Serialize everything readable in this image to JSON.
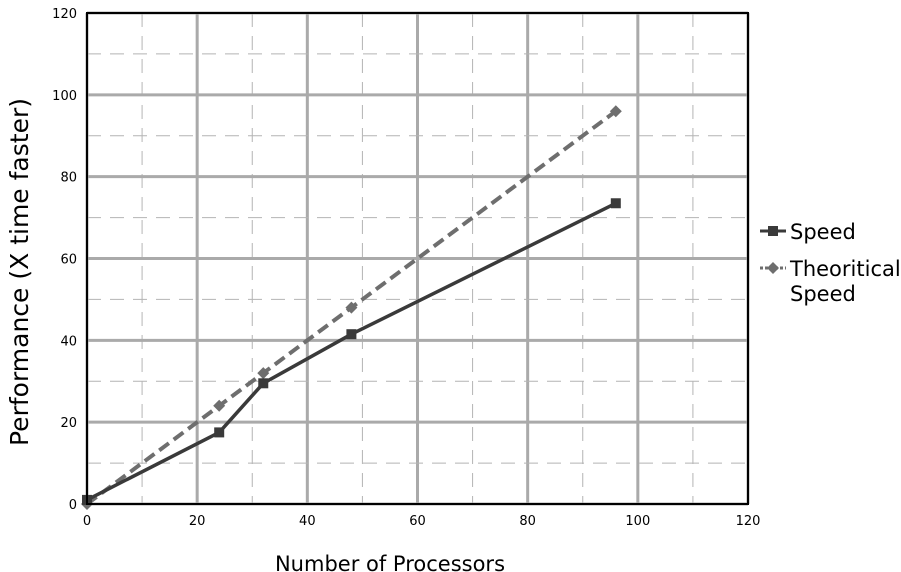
{
  "chart_data": {
    "type": "line",
    "title": "",
    "xlabel": "Number of Processors",
    "ylabel": "Performance (X  time faster)",
    "xlim": [
      0,
      120
    ],
    "ylim": [
      0,
      120
    ],
    "xticks": [
      "0",
      "20",
      "40",
      "60",
      "80",
      "100",
      "120"
    ],
    "yticks": [
      "0",
      "20",
      "40",
      "60",
      "80",
      "100",
      "120"
    ],
    "grid": true,
    "legend_position": "right",
    "series": [
      {
        "name": "Speed",
        "style": "solid",
        "marker": "square",
        "color": "#3a3a3a",
        "points": [
          [
            0,
            1
          ],
          [
            24,
            17.5
          ],
          [
            32,
            29.5
          ],
          [
            48,
            41.5
          ],
          [
            96,
            73.5
          ]
        ]
      },
      {
        "name": "Theoritical Speed",
        "style": "dashed",
        "marker": "diamond",
        "color": "#6e6e6e",
        "points": [
          [
            0,
            0
          ],
          [
            24,
            24
          ],
          [
            32,
            32
          ],
          [
            48,
            48
          ],
          [
            96,
            96
          ]
        ]
      }
    ]
  },
  "legend": {
    "items": [
      {
        "lines": [
          "Speed"
        ]
      },
      {
        "lines": [
          "Theoritical",
          "Speed"
        ]
      }
    ]
  }
}
